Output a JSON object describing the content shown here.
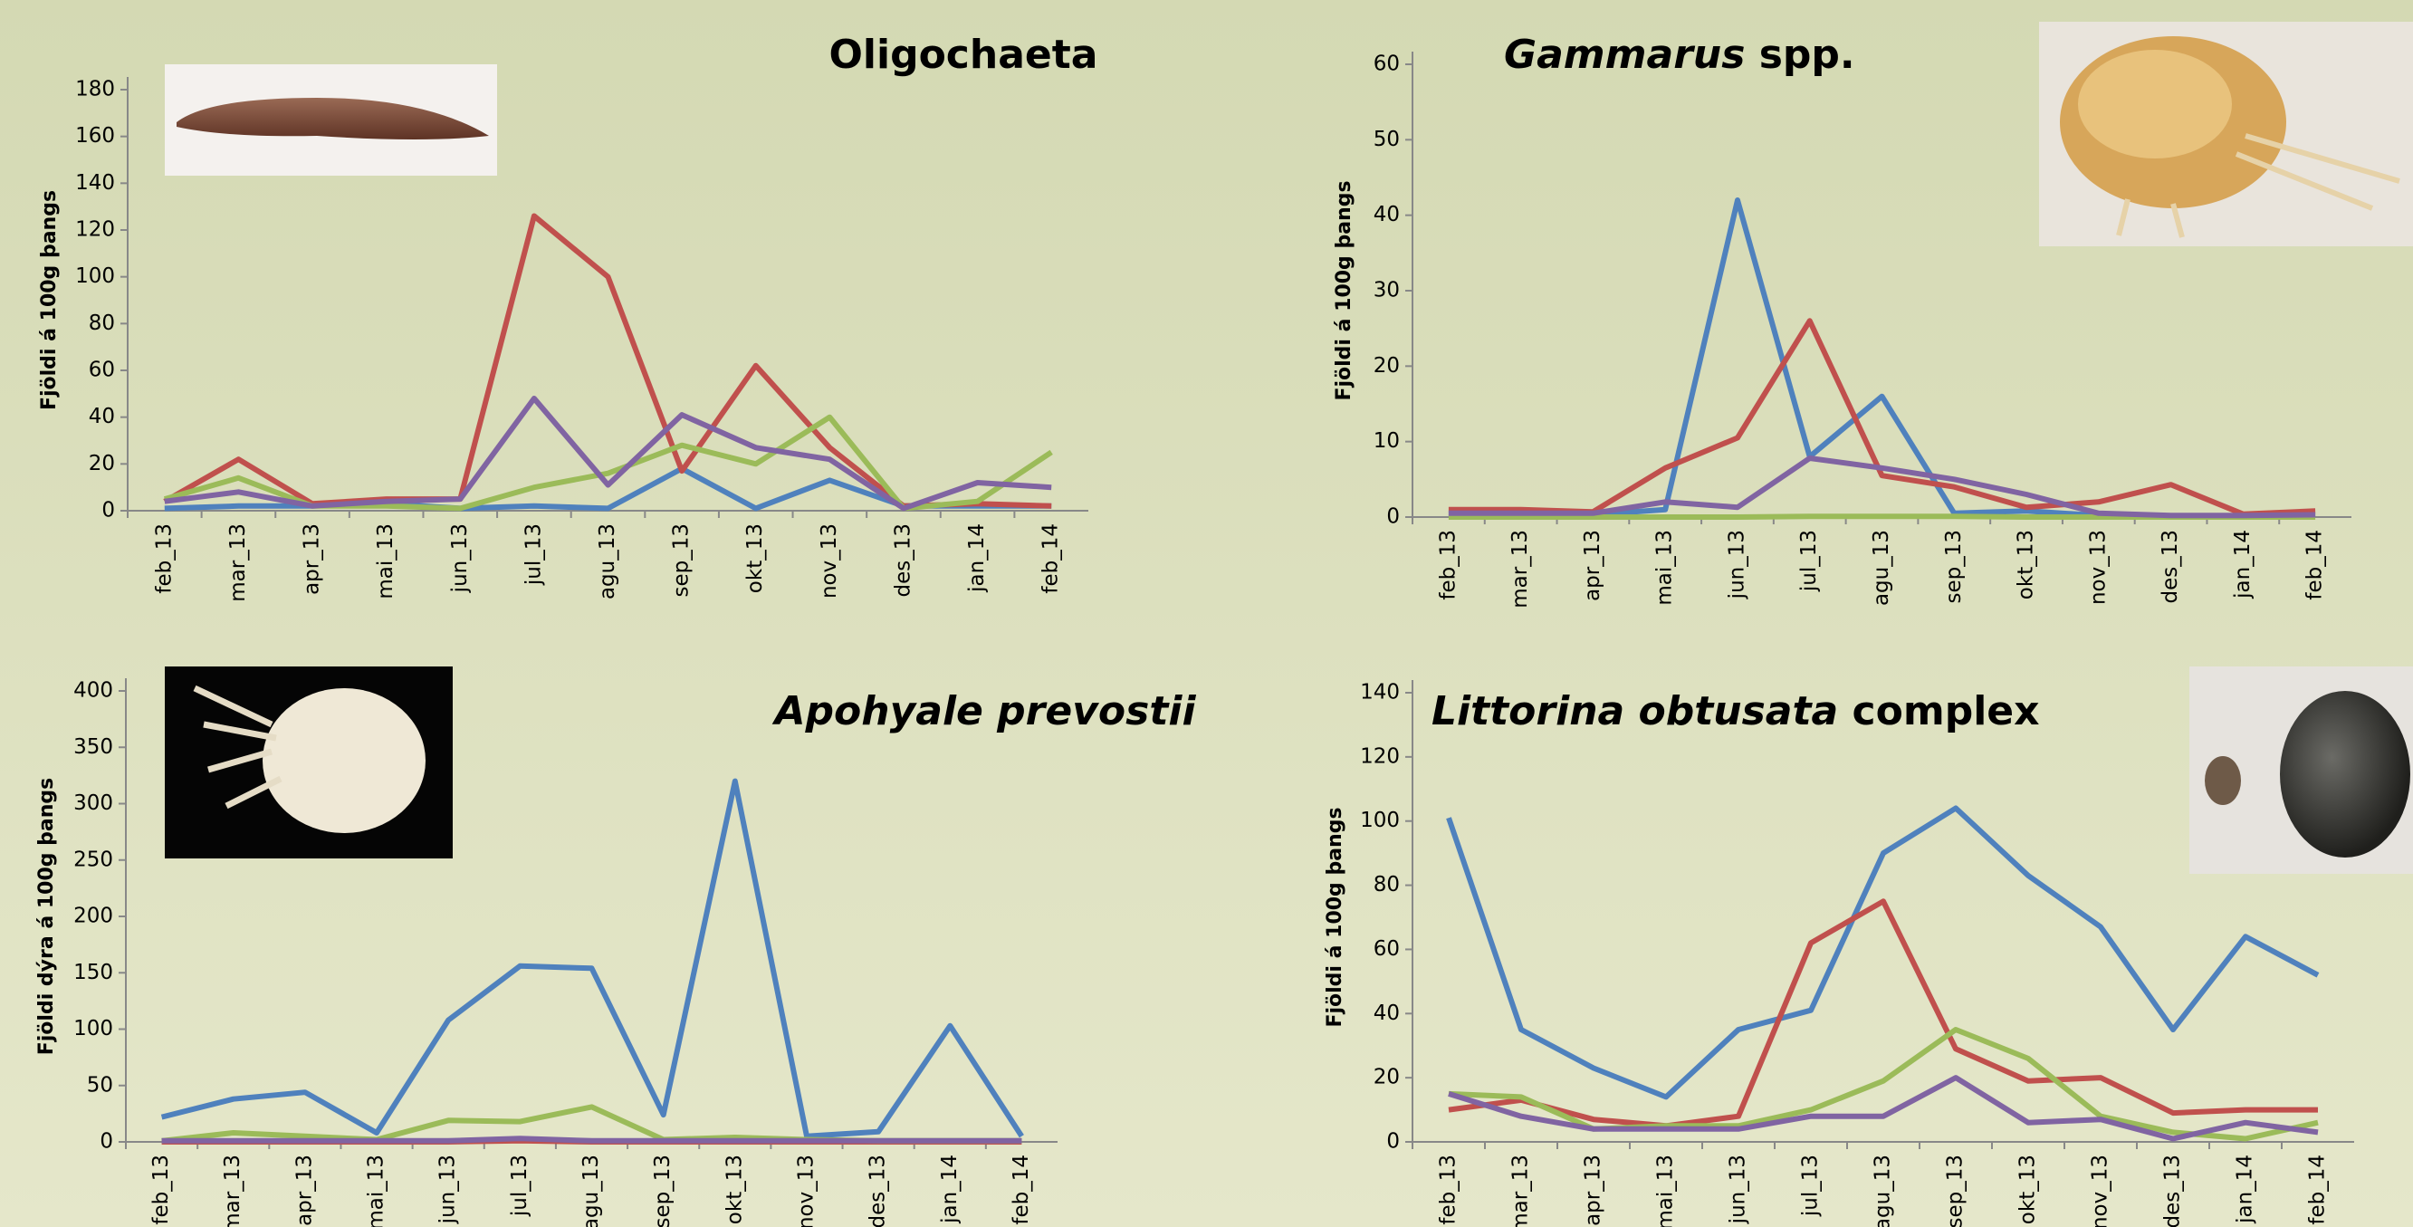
{
  "chart_data": [
    {
      "type": "line",
      "title": [
        "Oligochaeta"
      ],
      "title_italic": [
        false
      ],
      "ylabel": "Fjöldi á 100g þangs",
      "categories": [
        "feb_13",
        "mar_13",
        "apr_13",
        "mai_13",
        "jun_13",
        "jul_13",
        "agu_13",
        "sep_13",
        "okt_13",
        "nov_13",
        "des_13",
        "jan_14",
        "feb_14"
      ],
      "ylim": [
        0,
        180
      ],
      "yticks": [
        0,
        20,
        40,
        60,
        80,
        100,
        120,
        140,
        160,
        180
      ],
      "series": [
        {
          "color": "#4f81bd",
          "values": [
            1,
            2,
            2,
            3,
            1,
            2,
            1,
            18,
            1,
            13,
            2,
            2,
            2
          ]
        },
        {
          "color": "#c0504d",
          "values": [
            4,
            22,
            3,
            5,
            5,
            126,
            100,
            17,
            62,
            27,
            2,
            3,
            2
          ]
        },
        {
          "color": "#9bbb59",
          "values": [
            5,
            14,
            2,
            2,
            1,
            10,
            16,
            28,
            20,
            40,
            1,
            4,
            25
          ]
        },
        {
          "color": "#8064a2",
          "values": [
            4,
            8,
            2,
            4,
            5,
            48,
            11,
            41,
            27,
            22,
            1,
            12,
            10
          ]
        }
      ]
    },
    {
      "type": "line",
      "title": [
        "Gammarus",
        " spp."
      ],
      "title_italic": [
        true,
        false
      ],
      "ylabel": "Fjöldi á 100g þangs",
      "categories": [
        "feb_13",
        "mar_13",
        "apr_13",
        "mai_13",
        "jun_13",
        "jul_13",
        "agu_13",
        "sep_13",
        "okt_13",
        "nov_13",
        "des_13",
        "jan_14",
        "feb_14"
      ],
      "ylim": [
        0,
        60
      ],
      "yticks": [
        0,
        10,
        20,
        30,
        40,
        50,
        60
      ],
      "series": [
        {
          "color": "#4f81bd",
          "values": [
            0.3,
            0.3,
            0.3,
            1,
            42,
            8,
            16,
            0.5,
            0.8,
            0.2,
            0.1,
            0.1,
            0.3
          ]
        },
        {
          "color": "#c0504d",
          "values": [
            1,
            1,
            0.7,
            6.5,
            10.5,
            26,
            5.5,
            4,
            1.3,
            2,
            4.3,
            0.4,
            0.8
          ]
        },
        {
          "color": "#9bbb59",
          "values": [
            0,
            0,
            0,
            0,
            0,
            0.1,
            0.1,
            0.1,
            0,
            0,
            0,
            0,
            0
          ]
        },
        {
          "color": "#8064a2",
          "values": [
            0.5,
            0.5,
            0.5,
            2,
            1.3,
            7.8,
            6.5,
            5,
            3,
            0.5,
            0.2,
            0.2,
            0.3
          ]
        }
      ]
    },
    {
      "type": "line",
      "title": [
        "Apohyale prevostii"
      ],
      "title_italic": [
        true
      ],
      "ylabel": "Fjöldi dýra á 100g þangs",
      "categories": [
        "feb_13",
        "mar_13",
        "apr_13",
        "mai_13",
        "jun_13",
        "jul_13",
        "agu_13",
        "sep_13",
        "okt_13",
        "nov_13",
        "des_13",
        "jan_14",
        "feb_14"
      ],
      "ylim": [
        0,
        400
      ],
      "yticks": [
        0,
        50,
        100,
        150,
        200,
        250,
        300,
        350,
        400
      ],
      "series": [
        {
          "color": "#4f81bd",
          "values": [
            22,
            38,
            44,
            8,
            108,
            156,
            154,
            24,
            320,
            5,
            9,
            103,
            5
          ]
        },
        {
          "color": "#c0504d",
          "values": [
            0,
            0,
            0,
            0,
            0,
            1,
            0,
            0,
            0,
            0,
            0,
            0,
            0
          ]
        },
        {
          "color": "#9bbb59",
          "values": [
            1,
            8,
            5,
            2,
            19,
            18,
            31,
            2,
            4,
            2,
            1,
            1,
            1
          ]
        },
        {
          "color": "#8064a2",
          "values": [
            1,
            1,
            1,
            1,
            1,
            3,
            1,
            1,
            1,
            1,
            1,
            1,
            1
          ]
        }
      ]
    },
    {
      "type": "line",
      "title": [
        "Littorina obtusata",
        " complex"
      ],
      "title_italic": [
        true,
        false
      ],
      "ylabel": "Fjöldi á 100g þangs",
      "categories": [
        "feb_13",
        "mar_13",
        "apr_13",
        "mai_13",
        "jun_13",
        "jul_13",
        "agu_13",
        "sep_13",
        "okt_13",
        "nov_13",
        "des_13",
        "jan_14",
        "feb_14"
      ],
      "ylim": [
        0,
        140
      ],
      "yticks": [
        0,
        20,
        40,
        60,
        80,
        100,
        120,
        140
      ],
      "series": [
        {
          "color": "#4f81bd",
          "values": [
            101,
            35,
            23,
            14,
            35,
            41,
            90,
            104,
            83,
            67,
            35,
            64,
            52
          ]
        },
        {
          "color": "#c0504d",
          "values": [
            10,
            13,
            7,
            5,
            8,
            62,
            75,
            29,
            19,
            20,
            9,
            10,
            10
          ]
        },
        {
          "color": "#9bbb59",
          "values": [
            15,
            14,
            4,
            5,
            5,
            10,
            19,
            35,
            26,
            8,
            3,
            1,
            6
          ]
        },
        {
          "color": "#8064a2",
          "values": [
            15,
            8,
            4,
            4,
            4,
            8,
            8,
            20,
            6,
            7,
            1,
            6,
            3
          ]
        }
      ]
    }
  ]
}
